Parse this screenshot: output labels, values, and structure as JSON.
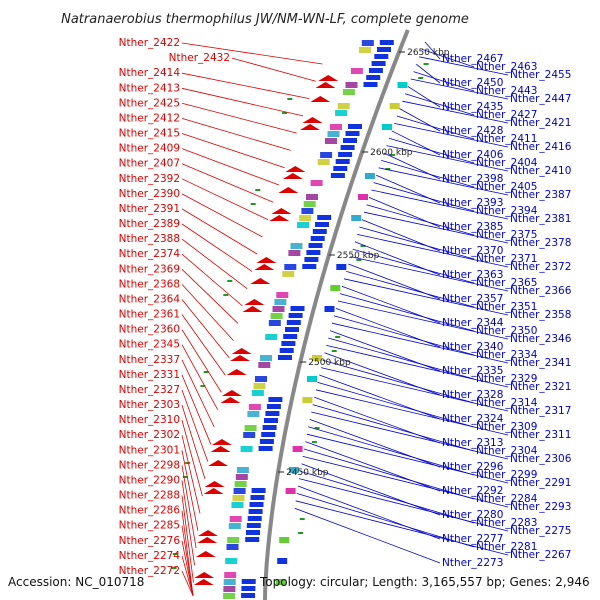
{
  "title": "Natranaerobius thermophilus JW/NM-WN-LF, complete genome",
  "accession": "Accession: NC_010718",
  "summary": "Topology: circular; Length: 3,165,557 bp; Genes: 2,946",
  "colors": {
    "left_strand": "#dd0000",
    "right_strand": "#0000cc",
    "backbone": "#888888",
    "gc_marker": "#229922"
  },
  "kbp_ticks": [
    "2650 kbp",
    "2600 kbp",
    "2550 kbp",
    "2500 kbp",
    "2450 kbp"
  ],
  "left_labels": [
    "Nther_2422",
    "Nther_2432",
    "Nther_2414",
    "Nther_2413",
    "Nther_2425",
    "Nther_2412",
    "Nther_2415",
    "Nther_2409",
    "Nther_2407",
    "Nther_2392",
    "Nther_2390",
    "Nther_2391",
    "Nther_2389",
    "Nther_2388",
    "Nther_2374",
    "Nther_2369",
    "Nther_2368",
    "Nther_2364",
    "Nther_2361",
    "Nther_2360",
    "Nther_2345",
    "Nther_2337",
    "Nther_2331",
    "Nther_2327",
    "Nther_2303",
    "Nther_2310",
    "Nther_2302",
    "Nther_2301",
    "Nther_2298",
    "Nther_2290",
    "Nther_2288",
    "Nther_2286",
    "Nther_2285",
    "Nther_2276",
    "Nther_2274",
    "Nther_2272"
  ],
  "right_labels": [
    "Nther_2467",
    "Nther_2463",
    "Nther_2455",
    "Nther_2450",
    "Nther_2443",
    "Nther_2447",
    "Nther_2435",
    "Nther_2427",
    "Nther_2421",
    "Nther_2428",
    "Nther_2411",
    "Nther_2416",
    "Nther_2406",
    "Nther_2404",
    "Nther_2410",
    "Nther_2398",
    "Nther_2405",
    "Nther_2387",
    "Nther_2393",
    "Nther_2394",
    "Nther_2381",
    "Nther_2385",
    "Nther_2375",
    "Nther_2378",
    "Nther_2370",
    "Nther_2371",
    "Nther_2372",
    "Nther_2363",
    "Nther_2365",
    "Nther_2366",
    "Nther_2357",
    "Nther_2351",
    "Nther_2358",
    "Nther_2344",
    "Nther_2350",
    "Nther_2346",
    "Nther_2340",
    "Nther_2334",
    "Nther_2341",
    "Nther_2335",
    "Nther_2329",
    "Nther_2321",
    "Nther_2328",
    "Nther_2314",
    "Nther_2317",
    "Nther_2324",
    "Nther_2309",
    "Nther_2311",
    "Nther_2313",
    "Nther_2304",
    "Nther_2306",
    "Nther_2296",
    "Nther_2299",
    "Nther_2291",
    "Nther_2292",
    "Nther_2284",
    "Nther_2293",
    "Nther_2280",
    "Nther_2283",
    "Nther_2275",
    "Nther_2277",
    "Nther_2281",
    "Nther_2267",
    "Nther_2273"
  ]
}
